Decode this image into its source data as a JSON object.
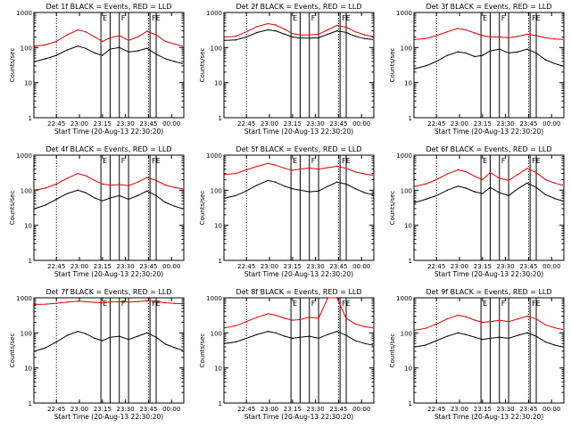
{
  "figure": {
    "colors": {
      "events": "#000000",
      "lld": "#e00000",
      "axis": "#000000"
    },
    "ylabel": "Counts/sec",
    "xlabel": "Start Time (20-Aug-13 22:30:20)",
    "yticks": [
      "1",
      "10",
      "100",
      "1000"
    ],
    "xticks": [
      "22:45",
      "23:00",
      "23:15",
      "23:30",
      "23:45",
      "00:00"
    ]
  },
  "chart_data": [
    {
      "type": "line",
      "panel": 1,
      "title": "Det 1f BLACK = Events, RED = LLD",
      "markers": [
        "E",
        "F",
        "FE"
      ],
      "yscale": "log",
      "ylim": [
        1,
        1000
      ],
      "x_range": [
        "22:30:20",
        "00:08:00"
      ],
      "series": [
        {
          "name": "Events",
          "x": [
            "22:31",
            "22:38",
            "22:45",
            "22:52",
            "22:59",
            "23:04",
            "23:10",
            "23:15",
            "23:20",
            "23:26",
            "23:32",
            "23:38",
            "23:44",
            "23:50",
            "23:56",
            "00:02",
            "00:07"
          ],
          "values": [
            40,
            48,
            60,
            85,
            110,
            95,
            70,
            60,
            90,
            100,
            75,
            80,
            95,
            65,
            48,
            40,
            35
          ]
        },
        {
          "name": "LLD",
          "x": [
            "22:31",
            "22:38",
            "22:45",
            "22:52",
            "22:59",
            "23:04",
            "23:10",
            "23:15",
            "23:20",
            "23:26",
            "23:32",
            "23:38",
            "23:44",
            "23:50",
            "23:56",
            "00:02",
            "00:07"
          ],
          "values": [
            110,
            120,
            150,
            230,
            320,
            280,
            200,
            150,
            190,
            220,
            160,
            200,
            290,
            230,
            150,
            125,
            110
          ]
        }
      ]
    },
    {
      "type": "line",
      "panel": 2,
      "title": "Det 2f BLACK = Events, RED = LLD",
      "markers": [
        "E",
        "F",
        "FE"
      ],
      "yscale": "log",
      "ylim": [
        1,
        1000
      ],
      "x_range": [
        "22:30:20",
        "00:08:00"
      ],
      "series": [
        {
          "name": "Events",
          "x": [
            "22:31",
            "22:38",
            "22:45",
            "22:52",
            "22:59",
            "23:04",
            "23:10",
            "23:15",
            "23:20",
            "23:26",
            "23:32",
            "23:38",
            "23:44",
            "23:50",
            "23:56",
            "00:02",
            "00:07"
          ],
          "values": [
            160,
            165,
            200,
            270,
            320,
            300,
            240,
            200,
            185,
            185,
            190,
            240,
            300,
            270,
            210,
            180,
            170
          ]
        },
        {
          "name": "LLD",
          "x": [
            "22:31",
            "22:38",
            "22:45",
            "22:52",
            "22:59",
            "23:04",
            "23:10",
            "23:15",
            "23:20",
            "23:26",
            "23:32",
            "23:38",
            "23:44",
            "23:50",
            "23:56",
            "00:02",
            "00:07"
          ],
          "values": [
            200,
            210,
            280,
            400,
            480,
            440,
            330,
            250,
            230,
            230,
            240,
            320,
            430,
            380,
            280,
            230,
            210
          ]
        }
      ]
    },
    {
      "type": "line",
      "panel": 3,
      "title": "Det 3f BLACK = Events, RED = LLD",
      "markers": [
        "E",
        "F",
        "FE"
      ],
      "yscale": "log",
      "ylim": [
        1,
        1000
      ],
      "x_range": [
        "22:30:20",
        "00:08:00"
      ],
      "series": [
        {
          "name": "Events",
          "x": [
            "22:31",
            "22:38",
            "22:45",
            "22:52",
            "22:59",
            "23:04",
            "23:10",
            "23:15",
            "23:20",
            "23:26",
            "23:32",
            "23:38",
            "23:44",
            "23:50",
            "23:56",
            "00:02",
            "00:07"
          ],
          "values": [
            25,
            30,
            40,
            60,
            75,
            70,
            55,
            60,
            80,
            90,
            70,
            75,
            90,
            70,
            45,
            35,
            30
          ]
        },
        {
          "name": "LLD",
          "x": [
            "22:31",
            "22:38",
            "22:45",
            "22:52",
            "22:59",
            "23:04",
            "23:10",
            "23:15",
            "23:20",
            "23:26",
            "23:32",
            "23:38",
            "23:44",
            "23:50",
            "23:56",
            "00:02",
            "00:07"
          ],
          "values": [
            170,
            180,
            220,
            280,
            350,
            320,
            260,
            220,
            200,
            200,
            190,
            210,
            240,
            220,
            190,
            175,
            170
          ]
        }
      ]
    },
    {
      "type": "line",
      "panel": 4,
      "title": "Det 4f BLACK = Events, RED = LLD",
      "markers": [
        "E",
        "F",
        "FE"
      ],
      "yscale": "log",
      "ylim": [
        1,
        1000
      ],
      "x_range": [
        "22:30:20",
        "00:08:00"
      ],
      "series": [
        {
          "name": "Events",
          "x": [
            "22:31",
            "22:38",
            "22:45",
            "22:52",
            "22:59",
            "23:04",
            "23:10",
            "23:15",
            "23:20",
            "23:26",
            "23:32",
            "23:38",
            "23:44",
            "23:50",
            "23:56",
            "00:02",
            "00:07"
          ],
          "values": [
            30,
            38,
            55,
            80,
            100,
            85,
            60,
            50,
            60,
            70,
            55,
            70,
            95,
            70,
            45,
            35,
            30
          ]
        },
        {
          "name": "LLD",
          "x": [
            "22:31",
            "22:38",
            "22:45",
            "22:52",
            "22:59",
            "23:04",
            "23:10",
            "23:15",
            "23:20",
            "23:26",
            "23:32",
            "23:38",
            "23:44",
            "23:50",
            "23:56",
            "00:02",
            "00:07"
          ],
          "values": [
            100,
            115,
            150,
            220,
            300,
            260,
            190,
            150,
            140,
            145,
            135,
            170,
            230,
            190,
            140,
            120,
            110
          ]
        }
      ]
    },
    {
      "type": "line",
      "panel": 5,
      "title": "Det 5f BLACK = Events, RED = LLD",
      "markers": [
        "E",
        "F",
        "FE"
      ],
      "yscale": "log",
      "ylim": [
        1,
        1000
      ],
      "x_range": [
        "22:30:20",
        "00:08:00"
      ],
      "series": [
        {
          "name": "Events",
          "x": [
            "22:31",
            "22:38",
            "22:45",
            "22:52",
            "22:59",
            "23:04",
            "23:10",
            "23:15",
            "23:20",
            "23:26",
            "23:32",
            "23:38",
            "23:44",
            "23:50",
            "23:56",
            "00:02",
            "00:07"
          ],
          "values": [
            60,
            70,
            95,
            140,
            190,
            170,
            130,
            110,
            100,
            90,
            95,
            130,
            170,
            150,
            110,
            85,
            75
          ]
        },
        {
          "name": "LLD",
          "x": [
            "22:31",
            "22:38",
            "22:45",
            "22:52",
            "22:59",
            "23:04",
            "23:10",
            "23:15",
            "23:20",
            "23:26",
            "23:32",
            "23:38",
            "23:44",
            "23:50",
            "23:56",
            "00:02",
            "00:07"
          ],
          "values": [
            280,
            300,
            380,
            480,
            580,
            520,
            420,
            370,
            400,
            430,
            400,
            440,
            480,
            420,
            330,
            290,
            270
          ]
        }
      ]
    },
    {
      "type": "line",
      "panel": 6,
      "title": "Det 6f BLACK = Events, RED = LLD",
      "markers": [
        "E",
        "F",
        "FE"
      ],
      "yscale": "log",
      "ylim": [
        1,
        1000
      ],
      "x_range": [
        "22:30:20",
        "00:08:00"
      ],
      "series": [
        {
          "name": "Events",
          "x": [
            "22:31",
            "22:38",
            "22:45",
            "22:52",
            "22:59",
            "23:04",
            "23:10",
            "23:15",
            "23:20",
            "23:26",
            "23:32",
            "23:38",
            "23:44",
            "23:50",
            "23:56",
            "00:02",
            "00:07"
          ],
          "values": [
            45,
            55,
            70,
            100,
            130,
            115,
            90,
            80,
            120,
            85,
            70,
            110,
            160,
            120,
            75,
            58,
            50
          ]
        },
        {
          "name": "LLD",
          "x": [
            "22:31",
            "22:38",
            "22:45",
            "22:52",
            "22:59",
            "23:04",
            "23:10",
            "23:15",
            "23:20",
            "23:26",
            "23:32",
            "23:38",
            "23:44",
            "23:50",
            "23:56",
            "00:02",
            "00:07"
          ],
          "values": [
            130,
            150,
            200,
            290,
            380,
            340,
            250,
            200,
            320,
            220,
            190,
            280,
            420,
            320,
            200,
            160,
            140
          ]
        }
      ]
    },
    {
      "type": "line",
      "panel": 7,
      "title": "Det 7f BLACK = Events, RED = LLD",
      "markers": [
        "E",
        "F",
        "FE"
      ],
      "yscale": "log",
      "ylim": [
        1,
        1000
      ],
      "x_range": [
        "22:30:20",
        "00:08:00"
      ],
      "series": [
        {
          "name": "Events",
          "x": [
            "22:31",
            "22:38",
            "22:45",
            "22:52",
            "22:59",
            "23:04",
            "23:10",
            "23:15",
            "23:20",
            "23:26",
            "23:32",
            "23:38",
            "23:44",
            "23:50",
            "23:56",
            "00:02",
            "00:07"
          ],
          "values": [
            30,
            38,
            55,
            85,
            110,
            95,
            70,
            60,
            75,
            80,
            65,
            80,
            100,
            75,
            48,
            38,
            32
          ]
        },
        {
          "name": "LLD",
          "x": [
            "22:31",
            "22:38",
            "22:45",
            "22:52",
            "22:59",
            "23:04",
            "23:10",
            "23:15",
            "23:20",
            "23:26",
            "23:32",
            "23:38",
            "23:44",
            "23:50",
            "23:56",
            "00:02",
            "00:07"
          ],
          "values": [
            650,
            660,
            700,
            750,
            800,
            780,
            740,
            720,
            760,
            780,
            760,
            780,
            820,
            780,
            720,
            690,
            670
          ]
        }
      ]
    },
    {
      "type": "line",
      "panel": 8,
      "title": "Det 8f BLACK = Events, RED = LLD",
      "markers": [
        "E",
        "F",
        "FE"
      ],
      "yscale": "log",
      "ylim": [
        1,
        1000
      ],
      "x_range": [
        "22:30:20",
        "00:08:00"
      ],
      "series": [
        {
          "name": "Events",
          "x": [
            "22:31",
            "22:38",
            "22:45",
            "22:52",
            "22:59",
            "23:04",
            "23:10",
            "23:15",
            "23:20",
            "23:26",
            "23:32",
            "23:38",
            "23:44",
            "23:50",
            "23:56",
            "00:02",
            "00:07"
          ],
          "values": [
            50,
            55,
            70,
            90,
            110,
            100,
            80,
            70,
            75,
            80,
            70,
            90,
            110,
            85,
            60,
            50,
            45
          ]
        },
        {
          "name": "LLD",
          "x": [
            "22:31",
            "22:38",
            "22:45",
            "22:52",
            "22:59",
            "23:04",
            "23:10",
            "23:15",
            "23:20",
            "23:26",
            "23:32",
            "23:38",
            "23:44",
            "23:50",
            "23:56",
            "00:02",
            "00:07"
          ],
          "values": [
            140,
            160,
            210,
            280,
            350,
            320,
            260,
            230,
            240,
            280,
            260,
            1000,
            1000,
            260,
            180,
            150,
            140
          ]
        }
      ]
    },
    {
      "type": "line",
      "panel": 9,
      "title": "Det 9f BLACK = Events, RED = LLD",
      "markers": [
        "E",
        "F",
        "FE"
      ],
      "yscale": "log",
      "ylim": [
        1,
        1000
      ],
      "x_range": [
        "22:30:20",
        "00:08:00"
      ],
      "series": [
        {
          "name": "Events",
          "x": [
            "22:31",
            "22:38",
            "22:45",
            "22:52",
            "22:59",
            "23:04",
            "23:10",
            "23:15",
            "23:20",
            "23:26",
            "23:32",
            "23:38",
            "23:44",
            "23:50",
            "23:56",
            "00:02",
            "00:07"
          ],
          "values": [
            40,
            45,
            60,
            80,
            100,
            90,
            75,
            65,
            70,
            75,
            70,
            85,
            100,
            80,
            55,
            45,
            40
          ]
        },
        {
          "name": "LLD",
          "x": [
            "22:31",
            "22:38",
            "22:45",
            "22:52",
            "22:59",
            "23:04",
            "23:10",
            "23:15",
            "23:20",
            "23:26",
            "23:32",
            "23:38",
            "23:44",
            "23:50",
            "23:56",
            "00:02",
            "00:07"
          ],
          "values": [
            120,
            135,
            180,
            250,
            320,
            290,
            230,
            200,
            210,
            230,
            210,
            250,
            300,
            250,
            170,
            140,
            125
          ]
        }
      ]
    }
  ]
}
